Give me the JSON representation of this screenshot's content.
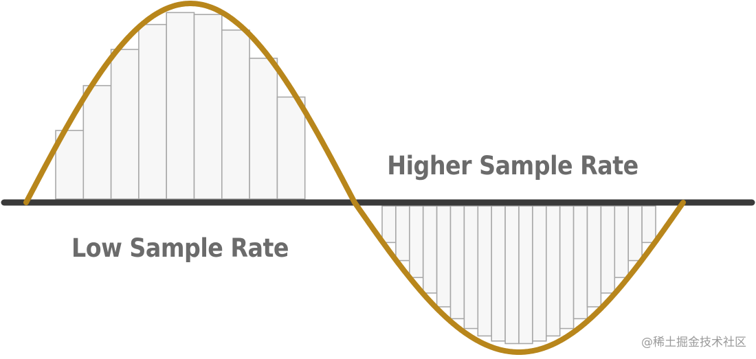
{
  "labels": {
    "high_rate": "Higher Sample Rate",
    "low_rate": "Low Sample Rate",
    "watermark": "@稀土掘金技术社区"
  },
  "colors": {
    "wave": "#b8861b",
    "baseline": "#3a3a3a",
    "bar_fill": "#f7f7f7",
    "bar_stroke": "#a8a8a8",
    "label_text": "#6b6b6b",
    "watermark_text": "#9a9a9a"
  },
  "samples": {
    "low_rate_count": 9,
    "high_rate_count": 20
  }
}
